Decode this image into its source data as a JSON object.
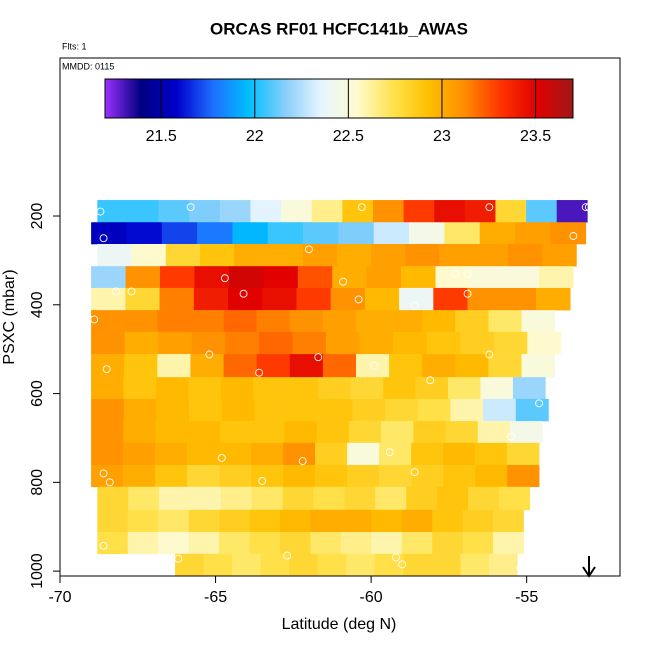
{
  "chart_data": {
    "type": "heatmap",
    "title": "ORCAS RF01 HCFC141b_AWAS",
    "annotations": [
      "Flts: 1",
      "MMDD: 0115"
    ],
    "x_label": "Latitude (deg N)",
    "y_label": "PSXC (mbar)",
    "xlim": [
      -70,
      -52
    ],
    "xticks": [
      -70,
      -65,
      -60,
      -55
    ],
    "ylim": [
      1011,
      -156
    ],
    "yticks": [
      200,
      400,
      600,
      800,
      1000
    ],
    "colorbar": {
      "lim": [
        21.2,
        23.7
      ],
      "ticks": [
        21.5,
        22.0,
        22.5,
        23.0,
        23.5
      ],
      "colors": [
        "#9b30ff",
        "#000080",
        "#0000cd",
        "#1e6fff",
        "#00bfff",
        "#87cefa",
        "#e6f5ff",
        "#fffbd0",
        "#ffe24d",
        "#ffbf00",
        "#ff8c00",
        "#ff3300",
        "#e00000",
        "#a01818"
      ]
    },
    "rows": [
      {
        "p": [
          164,
          214
        ],
        "lat": [
          -68.8,
          -53.05
        ],
        "values": [
          22.05,
          22.05,
          22.1,
          22.15,
          22.2,
          22.35,
          22.5,
          22.65,
          22.9,
          23.1,
          23.3,
          23.45,
          23.4,
          22.8,
          22.1,
          21.3
        ]
      },
      {
        "p": [
          214,
          263
        ],
        "lat": [
          -69.0,
          -53.1
        ],
        "values": [
          21.55,
          21.6,
          21.7,
          21.8,
          21.95,
          22.05,
          22.1,
          22.15,
          22.3,
          22.45,
          22.7,
          23.0,
          23.05,
          23.1
        ]
      },
      {
        "p": [
          263,
          313
        ],
        "lat": [
          -68.8,
          -53.4
        ],
        "values": [
          22.4,
          22.55,
          22.8,
          22.9,
          23.0,
          23.0,
          23.05,
          23.0,
          23.05,
          23.1,
          23.05,
          23.05,
          23.1,
          23.05
        ]
      },
      {
        "p": [
          313,
          362
        ],
        "lat": [
          -69.0,
          -53.5
        ],
        "values": [
          22.2,
          23.1,
          23.3,
          23.45,
          23.55,
          23.5,
          23.25,
          23.0,
          23.05,
          22.95,
          22.55,
          22.5,
          22.5,
          22.6
        ]
      },
      {
        "p": [
          362,
          412
        ],
        "lat": [
          -69.0,
          -53.6
        ],
        "values": [
          22.6,
          22.8,
          23.15,
          23.4,
          23.5,
          23.45,
          23.3,
          23.1,
          22.95,
          22.4,
          23.3,
          23.1,
          23.1,
          23.0
        ]
      },
      {
        "p": [
          412,
          461
        ],
        "lat": [
          -69.0,
          -54.1
        ],
        "values": [
          23.1,
          23.1,
          23.15,
          23.15,
          23.2,
          23.15,
          23.1,
          23.05,
          23.0,
          23.0,
          22.95,
          22.85,
          22.7,
          22.5
        ]
      },
      {
        "p": [
          461,
          511
        ],
        "lat": [
          -69.0,
          -53.9
        ],
        "values": [
          23.1,
          23.0,
          23.05,
          23.1,
          23.15,
          23.2,
          23.15,
          23.05,
          23.0,
          22.95,
          22.9,
          22.85,
          22.8,
          22.55
        ]
      },
      {
        "p": [
          511,
          563
        ],
        "lat": [
          -69.0,
          -54.1
        ],
        "values": [
          23.0,
          22.9,
          22.6,
          23.0,
          23.2,
          23.3,
          23.45,
          23.2,
          22.6,
          22.9,
          23.0,
          22.95,
          22.8,
          22.5
        ]
      },
      {
        "p": [
          563,
          612
        ],
        "lat": [
          -69.0,
          -54.4
        ],
        "values": [
          23.0,
          22.9,
          22.95,
          22.9,
          22.95,
          22.9,
          22.9,
          22.85,
          22.8,
          22.9,
          22.85,
          22.7,
          22.5,
          22.2
        ]
      },
      {
        "p": [
          612,
          662
        ],
        "lat": [
          -69.0,
          -54.3
        ],
        "values": [
          23.1,
          23.0,
          22.95,
          22.9,
          22.95,
          22.9,
          22.9,
          22.9,
          22.85,
          22.8,
          22.75,
          22.6,
          22.3,
          22.1
        ]
      },
      {
        "p": [
          662,
          711
        ],
        "lat": [
          -69.0,
          -54.5
        ],
        "values": [
          23.1,
          23.0,
          22.95,
          22.95,
          22.9,
          22.9,
          22.95,
          22.9,
          22.8,
          22.7,
          22.85,
          22.8,
          22.6,
          22.45
        ]
      },
      {
        "p": [
          711,
          761
        ],
        "lat": [
          -69.0,
          -54.6
        ],
        "values": [
          23.1,
          23.05,
          23.0,
          22.95,
          22.95,
          23.0,
          23.1,
          22.85,
          22.5,
          22.7,
          22.9,
          22.95,
          22.9,
          22.8
        ]
      },
      {
        "p": [
          761,
          810
        ],
        "lat": [
          -69.0,
          -54.6
        ],
        "values": [
          23.05,
          23.0,
          22.9,
          22.8,
          22.85,
          22.9,
          22.95,
          22.9,
          22.85,
          22.8,
          22.85,
          22.9,
          22.95,
          23.1
        ]
      },
      {
        "p": [
          810,
          862
        ],
        "lat": [
          -68.8,
          -54.9
        ],
        "values": [
          22.8,
          22.7,
          22.6,
          22.6,
          22.65,
          22.7,
          22.8,
          22.75,
          22.8,
          22.7,
          22.85,
          22.9,
          22.8,
          22.75
        ]
      },
      {
        "p": [
          862,
          912
        ],
        "lat": [
          -68.8,
          -55.1
        ],
        "values": [
          22.8,
          22.75,
          22.7,
          22.8,
          22.85,
          22.9,
          22.95,
          23.0,
          23.0,
          22.95,
          23.0,
          22.9,
          22.85,
          22.8
        ]
      },
      {
        "p": [
          912,
          961
        ],
        "lat": [
          -68.8,
          -55.1
        ],
        "values": [
          22.75,
          22.6,
          22.55,
          22.6,
          22.7,
          22.75,
          22.8,
          22.7,
          22.65,
          22.6,
          22.7,
          22.8,
          22.75,
          22.6
        ]
      },
      {
        "p": [
          961,
          1011
        ],
        "lat": [
          -66.3,
          -55.3
        ],
        "values": [
          22.8,
          22.75,
          22.7,
          22.75,
          22.8,
          22.75,
          22.7,
          22.75,
          22.8,
          22.8,
          22.7,
          22.65
        ]
      }
    ],
    "points": {
      "x": [
        -68.7,
        -65.8,
        -60.3,
        -56.2,
        -53.1,
        -53.0,
        -68.6,
        -62.0,
        -53.5,
        -60.9,
        -57.3,
        -56.9,
        -53.3,
        -64.7,
        -64.1,
        -68.2,
        -67.7,
        -60.4,
        -56.9,
        -58.6,
        -68.9,
        -65.2,
        -61.7,
        -59.9,
        -56.2,
        -68.5,
        -63.6,
        -58.1,
        -54.6,
        -55.5,
        -59.4,
        -64.8,
        -62.2,
        -58.6,
        -63.5,
        -68.6,
        -68.4,
        -54.7,
        -68.6,
        -66.2,
        -62.7,
        -59.2,
        -59.0,
        -55.2
      ],
      "y": [
        190,
        180,
        180,
        180,
        180,
        180,
        250,
        275,
        245,
        348,
        330,
        330,
        330,
        340,
        375,
        370,
        370,
        388,
        375,
        402,
        433,
        512,
        518,
        537,
        512,
        545,
        553,
        570,
        622,
        697,
        732,
        745,
        752,
        777,
        797,
        780,
        800,
        838,
        943,
        972,
        965,
        969,
        985,
        993
      ]
    }
  }
}
